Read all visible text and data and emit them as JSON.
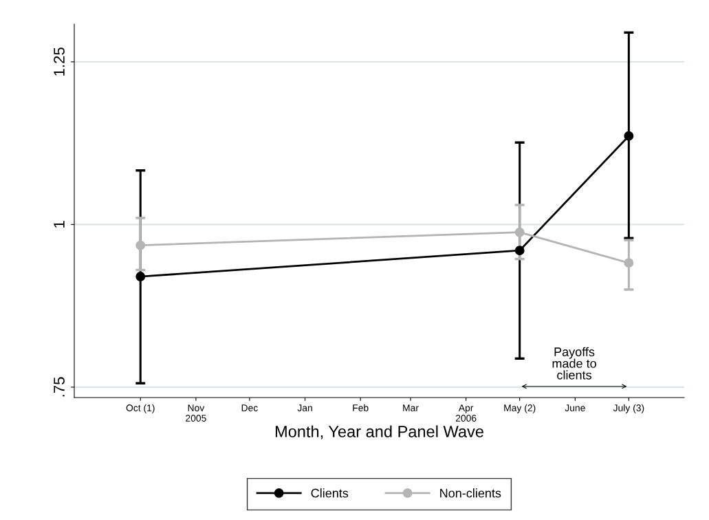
{
  "chart_data": {
    "type": "line",
    "xlabel": "Month, Year and Panel Wave",
    "xlim": [
      "2005-08-25",
      "2006-08-01"
    ],
    "xticks": [
      {
        "value": "2005-10",
        "label": "Oct (1)"
      },
      {
        "value": "2005-11",
        "label": "Nov\n2005"
      },
      {
        "value": "2005-12",
        "label": "Dec"
      },
      {
        "value": "2006-01",
        "label": "Jan"
      },
      {
        "value": "2006-02",
        "label": "Feb"
      },
      {
        "value": "2006-03",
        "label": "Mar"
      },
      {
        "value": "2006-04",
        "label": "Apr\n2006"
      },
      {
        "value": "2006-05",
        "label": "May (2)"
      },
      {
        "value": "2006-06",
        "label": "June"
      },
      {
        "value": "2006-07",
        "label": "July (3)"
      }
    ],
    "ylim": [
      0.734,
      1.308
    ],
    "yticks": [
      {
        "value": 0.75,
        "label": ".75"
      },
      1,
      1.25
    ],
    "x": [
      "2005-10",
      "2006-05",
      "2006-07"
    ],
    "series": [
      {
        "name": "Clients",
        "color": "#000000",
        "values": [
          0.92,
          0.96,
          1.136
        ],
        "errors": [
          [
            0.756,
            1.083
          ],
          [
            0.794,
            1.126
          ],
          [
            0.979,
            1.295
          ]
        ]
      },
      {
        "name": "Non-clients",
        "color": "#b4b4b4",
        "values": [
          0.968,
          0.988,
          0.941
        ],
        "errors": [
          [
            0.93,
            1.01
          ],
          [
            0.947,
            1.03
          ],
          [
            0.9,
            0.976
          ]
        ]
      }
    ],
    "annotations": [
      "Payoffs\nmade to\nclients"
    ],
    "grid": "y",
    "legend": "bottom",
    "marker": "circle",
    "line_style": "solid"
  }
}
